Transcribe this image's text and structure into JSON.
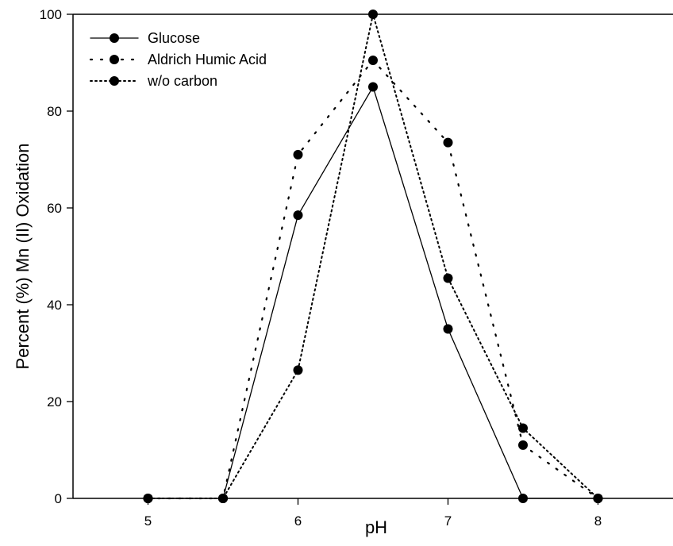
{
  "chart_data": {
    "type": "line",
    "title": "",
    "xlabel": "pH",
    "ylabel": "Percent (%) Mn (II) Oxidation",
    "xlim": [
      4.5,
      8.5
    ],
    "ylim": [
      0,
      100
    ],
    "x_ticks": [
      5,
      6,
      7,
      8
    ],
    "y_ticks": [
      0,
      20,
      40,
      60,
      80,
      100
    ],
    "x_tick_labels": [
      "5",
      "6",
      "7",
      "8"
    ],
    "y_tick_labels": [
      "0",
      "20",
      "40",
      "60",
      "80",
      "100"
    ],
    "grid": false,
    "legend_position": "top-left",
    "series": [
      {
        "name": "Glucose",
        "line_style": "solid",
        "x": [
          5,
          5.5,
          6,
          6.5,
          7,
          7.5,
          8
        ],
        "y": [
          0,
          0,
          58.5,
          85,
          35,
          0,
          0
        ]
      },
      {
        "name": "Aldrich Humic Acid",
        "line_style": "sparse-dotted",
        "x": [
          5,
          5.5,
          6,
          6.5,
          7,
          7.5,
          8
        ],
        "y": [
          0,
          0,
          71,
          90.5,
          73.5,
          11,
          0
        ]
      },
      {
        "name": "w/o carbon",
        "line_style": "dotted",
        "x": [
          5,
          5.5,
          6,
          6.5,
          7,
          7.5,
          8
        ],
        "y": [
          0,
          0,
          26.5,
          100,
          45.5,
          14.5,
          0
        ]
      }
    ]
  }
}
